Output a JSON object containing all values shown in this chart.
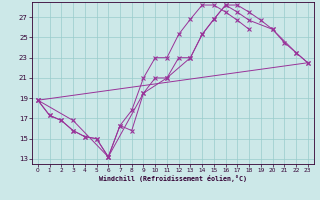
{
  "xlabel": "Windchill (Refroidissement éolien,°C)",
  "bg_color": "#cce8e8",
  "line_color": "#993399",
  "grid_color": "#99cccc",
  "xlim": [
    -0.5,
    23.5
  ],
  "ylim": [
    12.5,
    28.5
  ],
  "xticks": [
    0,
    1,
    2,
    3,
    4,
    5,
    6,
    7,
    8,
    9,
    10,
    11,
    12,
    13,
    14,
    15,
    16,
    17,
    18,
    19,
    20,
    21,
    22,
    23
  ],
  "yticks": [
    13,
    15,
    17,
    19,
    21,
    23,
    25,
    27
  ],
  "line1_x": [
    0,
    1,
    2,
    3,
    4,
    5,
    6,
    7,
    8,
    9,
    10,
    11,
    12,
    13,
    14,
    15,
    16,
    17,
    18,
    19,
    20,
    21,
    22,
    23
  ],
  "line1_y": [
    18.8,
    17.3,
    16.8,
    15.8,
    15.2,
    15.0,
    13.2,
    16.3,
    15.8,
    19.5,
    21.0,
    21.0,
    23.0,
    23.0,
    25.3,
    26.8,
    28.2,
    28.2,
    27.5,
    26.7,
    25.8,
    24.5,
    23.5,
    22.5
  ],
  "line2_x": [
    0,
    1,
    2,
    3,
    4,
    5,
    6,
    7,
    8,
    9,
    10,
    11,
    12,
    13,
    14,
    15,
    16,
    17,
    18
  ],
  "line2_y": [
    18.8,
    17.3,
    16.8,
    15.8,
    15.2,
    15.0,
    13.2,
    16.3,
    17.8,
    21.0,
    23.0,
    23.0,
    25.3,
    26.8,
    28.2,
    28.2,
    27.5,
    26.7,
    25.8
  ],
  "line3_x": [
    0,
    23
  ],
  "line3_y": [
    18.8,
    22.5
  ],
  "line4_x": [
    0,
    3,
    6,
    9,
    11,
    13,
    14,
    15,
    16,
    17,
    18,
    20,
    22,
    23
  ],
  "line4_y": [
    18.8,
    16.8,
    13.2,
    19.5,
    21.0,
    23.0,
    25.3,
    26.8,
    28.2,
    27.5,
    26.7,
    25.8,
    23.5,
    22.5
  ]
}
